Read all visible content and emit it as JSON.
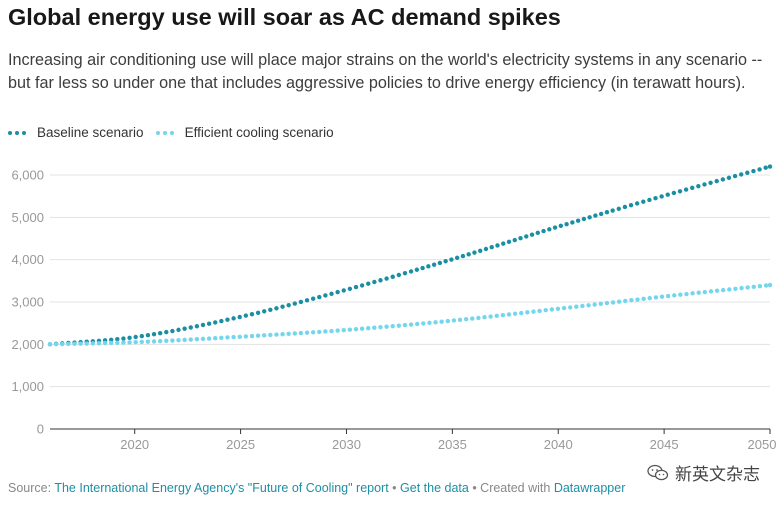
{
  "header": {
    "title": "Global energy use will soar as AC demand spikes",
    "subtitle": "Increasing air conditioning use will place major strains on the world's electricity systems in any scenario -- but far less so under one that includes aggressive policies to drive energy efficiency (in terawatt hours)."
  },
  "legend": {
    "items": [
      {
        "label": "Baseline scenario",
        "color": "#1a8fa3"
      },
      {
        "label": "Efficient cooling scenario",
        "color": "#74d6ec"
      }
    ]
  },
  "footer": {
    "source_prefix": "Source: ",
    "source_link": "The International Energy Agency's \"Future of Cooling\" report",
    "sep1": " • ",
    "get_data": "Get the data",
    "sep2": " • Created with ",
    "created_with": "Datawrapper"
  },
  "watermark": {
    "text": "新英文杂志",
    "icon": "wechat-icon"
  },
  "chart_data": {
    "type": "line",
    "title": "Global energy use will soar as AC demand spikes",
    "xlabel": "",
    "ylabel": "",
    "xlim": [
      2016,
      2050
    ],
    "ylim": [
      0,
      6000
    ],
    "x_ticks": [
      2020,
      2025,
      2030,
      2035,
      2040,
      2045,
      2050
    ],
    "y_ticks": [
      0,
      1000,
      2000,
      3000,
      4000,
      5000,
      6000
    ],
    "y_tick_labels": [
      "0",
      "1,000",
      "2,000",
      "3,000",
      "4,000",
      "5,000",
      "6,000"
    ],
    "grid": true,
    "legend_position": "top-left",
    "x": [
      2016,
      2020,
      2025,
      2030,
      2035,
      2040,
      2045,
      2050
    ],
    "series": [
      {
        "name": "Baseline scenario",
        "color": "#1a8fa3",
        "style": "dotted",
        "values": [
          2000,
          2170,
          2650,
          3290,
          4010,
          4780,
          5510,
          6200
        ]
      },
      {
        "name": "Efficient cooling scenario",
        "color": "#74d6ec",
        "style": "dotted",
        "values": [
          2000,
          2050,
          2180,
          2340,
          2560,
          2840,
          3130,
          3400
        ]
      }
    ]
  }
}
